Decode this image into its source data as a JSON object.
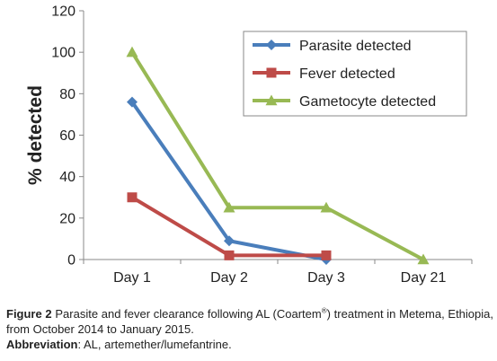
{
  "chart_data": {
    "type": "line",
    "categories": [
      "Day 1",
      "Day 2",
      "Day 3",
      "Day 21"
    ],
    "series": [
      {
        "name": "Parasite detected",
        "color": "#4a7ebb",
        "marker": "diamond",
        "values": [
          76,
          9,
          0,
          null
        ]
      },
      {
        "name": "Fever detected",
        "color": "#be4b48",
        "marker": "square",
        "values": [
          30,
          2,
          2,
          null
        ]
      },
      {
        "name": "Gametocyte detected",
        "color": "#98b954",
        "marker": "triangle",
        "values": [
          100,
          25,
          25,
          0
        ]
      }
    ],
    "ylabel": "% detected",
    "ylim": [
      0,
      120
    ],
    "yticks": [
      0,
      20,
      40,
      60,
      80,
      100,
      120
    ],
    "grid": false,
    "legend_position": "top-right"
  },
  "caption": {
    "figure_label": "Figure 2",
    "figure_text_1": " Parasite and fever clearance following AL (Coartem",
    "figure_text_sup": "®",
    "figure_text_2": ") treatment in Metema, Ethiopia, from October 2014 to January 2015.",
    "abbreviation_label": "Abbreviation",
    "abbreviation_text": ": AL, artemether/lumefantrine."
  }
}
